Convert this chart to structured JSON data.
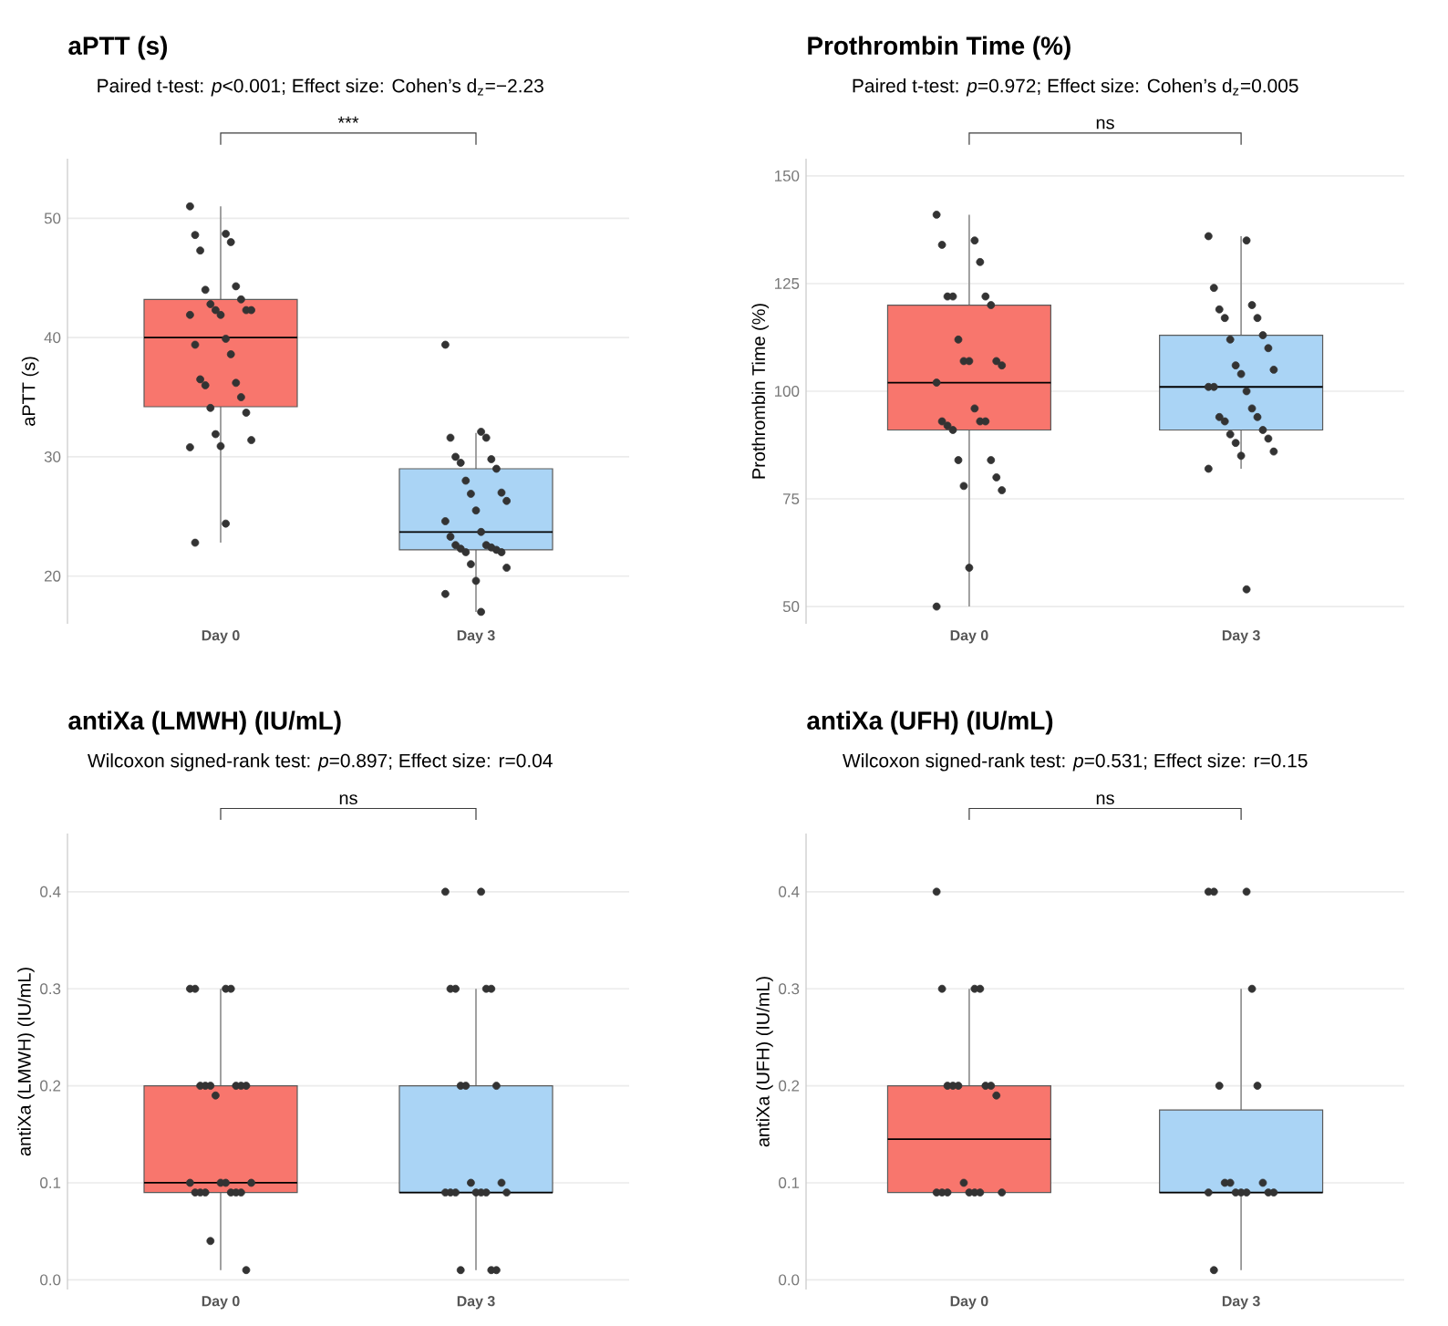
{
  "chart_data": [
    {
      "type": "box",
      "title": "aPTT (s)",
      "subtitle": "Paired t-test: *p*<0.001; Effect size: Cohen’s d$_{z}$=−2.23",
      "ylabel": "aPTT (s)",
      "categories": [
        "Day 0",
        "Day 3"
      ],
      "colors": [
        "#f8766d",
        "#aad4f5"
      ],
      "marker": "circle",
      "boxes": [
        {
          "low": 22.8,
          "q1": 34.2,
          "median": 40.0,
          "q3": 43.2,
          "high": 51.0
        },
        {
          "low": 17.0,
          "q1": 22.2,
          "median": 23.7,
          "q3": 29.0,
          "high": 32.0
        }
      ],
      "series": [
        {
          "type": "scatter",
          "color": "#333333",
          "x": [
            "Day 0",
            "Day 0",
            "Day 0",
            "Day 0",
            "Day 0",
            "Day 0",
            "Day 0",
            "Day 0",
            "Day 0",
            "Day 0",
            "Day 0",
            "Day 0",
            "Day 0",
            "Day 0",
            "Day 0",
            "Day 0",
            "Day 0",
            "Day 0",
            "Day 0",
            "Day 0",
            "Day 0",
            "Day 0",
            "Day 0",
            "Day 0",
            "Day 0",
            "Day 0",
            "Day 0",
            "Day 0",
            "Day 0"
          ],
          "values": [
            51.0,
            48.7,
            48.6,
            48.0,
            47.3,
            44.3,
            44.0,
            43.2,
            42.8,
            42.3,
            42.3,
            42.3,
            41.9,
            41.9,
            39.9,
            39.4,
            38.6,
            36.5,
            36.2,
            36.0,
            35.0,
            34.1,
            33.7,
            31.9,
            31.4,
            30.9,
            30.8,
            24.4,
            22.8
          ]
        },
        {
          "type": "scatter",
          "color": "#333333",
          "x": [
            "Day 3",
            "Day 3",
            "Day 3",
            "Day 3",
            "Day 3",
            "Day 3",
            "Day 3",
            "Day 3",
            "Day 3",
            "Day 3",
            "Day 3",
            "Day 3",
            "Day 3",
            "Day 3",
            "Day 3",
            "Day 3",
            "Day 3",
            "Day 3",
            "Day 3",
            "Day 3",
            "Day 3",
            "Day 3",
            "Day 3",
            "Day 3",
            "Day 3",
            "Day 3",
            "Day 3",
            "Day 3"
          ],
          "values": [
            39.4,
            32.1,
            31.6,
            31.6,
            30.0,
            29.8,
            29.5,
            29.0,
            28.0,
            27.0,
            26.9,
            26.3,
            25.5,
            24.6,
            23.7,
            23.3,
            22.6,
            22.6,
            22.4,
            22.3,
            22.2,
            22.0,
            22.0,
            21.0,
            20.7,
            19.6,
            18.5,
            17.0
          ]
        }
      ],
      "ylim": [
        16,
        55
      ],
      "yticks": [
        20,
        30,
        40,
        50
      ],
      "grid": "y",
      "annotations": [
        "***"
      ]
    },
    {
      "type": "box",
      "title": "Prothrombin Time (%)",
      "subtitle": "Paired t-test: *p*=0.972; Effect size: Cohen’s d$_{z}$=0.005",
      "ylabel": "Prothrombin Time (%)",
      "categories": [
        "Day 0",
        "Day 3"
      ],
      "colors": [
        "#f8766d",
        "#aad4f5"
      ],
      "marker": "circle",
      "boxes": [
        {
          "low": 50,
          "q1": 91,
          "median": 102,
          "q3": 120,
          "high": 141
        },
        {
          "low": 82,
          "q1": 91,
          "median": 101,
          "q3": 113,
          "high": 136
        }
      ],
      "series": [
        {
          "type": "scatter",
          "color": "#333333",
          "x": [
            "Day 0",
            "Day 0",
            "Day 0",
            "Day 0",
            "Day 0",
            "Day 0",
            "Day 0",
            "Day 0",
            "Day 0",
            "Day 0",
            "Day 0",
            "Day 0",
            "Day 0",
            "Day 0",
            "Day 0",
            "Day 0",
            "Day 0",
            "Day 0",
            "Day 0",
            "Day 0",
            "Day 0",
            "Day 0",
            "Day 0",
            "Day 0",
            "Day 0",
            "Day 0",
            "Day 0"
          ],
          "values": [
            141,
            135,
            134,
            130,
            122,
            122,
            122,
            120,
            112,
            107,
            107,
            106,
            107,
            102,
            96,
            93,
            93,
            92,
            93,
            91,
            84,
            84,
            80,
            78,
            77,
            59,
            50
          ]
        },
        {
          "type": "scatter",
          "color": "#333333",
          "x": [
            "Day 3",
            "Day 3",
            "Day 3",
            "Day 3",
            "Day 3",
            "Day 3",
            "Day 3",
            "Day 3",
            "Day 3",
            "Day 3",
            "Day 3",
            "Day 3",
            "Day 3",
            "Day 3",
            "Day 3",
            "Day 3",
            "Day 3",
            "Day 3",
            "Day 3",
            "Day 3",
            "Day 3",
            "Day 3",
            "Day 3",
            "Day 3",
            "Day 3",
            "Day 3",
            "Day 3",
            "Day 3"
          ],
          "values": [
            136,
            135,
            124,
            120,
            119,
            117,
            117,
            113,
            112,
            110,
            106,
            105,
            104,
            101,
            100,
            101,
            96,
            94,
            94,
            93,
            91,
            90,
            89,
            88,
            86,
            85,
            82,
            54
          ]
        }
      ],
      "ylim": [
        46,
        154
      ],
      "yticks": [
        50,
        75,
        100,
        125,
        150
      ],
      "grid": "y",
      "annotations": [
        "ns"
      ]
    },
    {
      "type": "box",
      "title": "antiXa (LMWH) (IU/mL)",
      "subtitle": "Wilcoxon signed-rank test: *p*=0.897; Effect size: r=0.04",
      "ylabel": "antiXa (LMWH) (IU/mL)",
      "categories": [
        "Day 0",
        "Day 3"
      ],
      "colors": [
        "#f8766d",
        "#aad4f5"
      ],
      "marker": "circle",
      "boxes": [
        {
          "low": 0.01,
          "q1": 0.09,
          "median": 0.1,
          "q3": 0.2,
          "high": 0.3
        },
        {
          "low": 0.01,
          "q1": 0.09,
          "median": 0.09,
          "q3": 0.2,
          "high": 0.3
        }
      ],
      "ylim": [
        -0.01,
        0.46
      ],
      "series": [
        {
          "type": "scatter",
          "color": "#333333",
          "x": [
            "Day 0",
            "Day 0",
            "Day 0",
            "Day 0",
            "Day 0",
            "Day 0",
            "Day 0",
            "Day 0",
            "Day 0",
            "Day 0",
            "Day 0",
            "Day 0",
            "Day 0",
            "Day 0",
            "Day 0",
            "Day 0",
            "Day 0",
            "Day 0",
            "Day 0",
            "Day 0",
            "Day 0",
            "Day 0",
            "Day 0"
          ],
          "values": [
            0.3,
            0.3,
            0.3,
            0.3,
            0.2,
            0.2,
            0.2,
            0.2,
            0.2,
            0.2,
            0.19,
            0.1,
            0.1,
            0.1,
            0.1,
            0.09,
            0.09,
            0.09,
            0.09,
            0.09,
            0.09,
            0.04,
            0.01
          ]
        },
        {
          "type": "scatter",
          "color": "#333333",
          "x": [
            "Day 3",
            "Day 3",
            "Day 3",
            "Day 3",
            "Day 3",
            "Day 3",
            "Day 3",
            "Day 3",
            "Day 3",
            "Day 3",
            "Day 3",
            "Day 3",
            "Day 3",
            "Day 3",
            "Day 3",
            "Day 3",
            "Day 3",
            "Day 3",
            "Day 3",
            "Day 3",
            "Day 3"
          ],
          "values": [
            0.4,
            0.4,
            0.3,
            0.3,
            0.3,
            0.3,
            0.2,
            0.2,
            0.2,
            0.1,
            0.1,
            0.09,
            0.09,
            0.09,
            0.09,
            0.09,
            0.09,
            0.09,
            0.01,
            0.01,
            0.01
          ]
        }
      ],
      "yticks": [
        {
          "value": 0,
          "label": "0.0"
        },
        0.1,
        0.2,
        0.3,
        0.4
      ],
      "grid": "y",
      "annotations": [
        "ns"
      ]
    },
    {
      "type": "box",
      "title": "antiXa (UFH) (IU/mL)",
      "subtitle": "Wilcoxon signed-rank test: *p*=0.531; Effect size: r=0.15",
      "ylabel": "antiXa (UFH) (IU/mL)",
      "categories": [
        "Day 0",
        "Day 3"
      ],
      "colors": [
        "#f8766d",
        "#aad4f5"
      ],
      "marker": "circle",
      "boxes": [
        {
          "low": 0.09,
          "q1": 0.09,
          "median": 0.145,
          "q3": 0.2,
          "high": 0.3
        },
        {
          "low": 0.01,
          "q1": 0.09,
          "median": 0.09,
          "q3": 0.175,
          "high": 0.3
        }
      ],
      "ylim": [
        -0.01,
        0.46
      ],
      "series": [
        {
          "type": "scatter",
          "color": "#333333",
          "x": [
            "Day 0",
            "Day 0",
            "Day 0",
            "Day 0",
            "Day 0",
            "Day 0",
            "Day 0",
            "Day 0",
            "Day 0",
            "Day 0",
            "Day 0",
            "Day 0",
            "Day 0",
            "Day 0",
            "Day 0",
            "Day 0",
            "Day 0",
            "Day 0"
          ],
          "values": [
            0.4,
            0.3,
            0.3,
            0.3,
            0.2,
            0.2,
            0.2,
            0.2,
            0.2,
            0.19,
            0.1,
            0.09,
            0.09,
            0.09,
            0.09,
            0.09,
            0.09,
            0.09
          ]
        },
        {
          "type": "scatter",
          "color": "#333333",
          "x": [
            "Day 3",
            "Day 3",
            "Day 3",
            "Day 3",
            "Day 3",
            "Day 3",
            "Day 3",
            "Day 3",
            "Day 3",
            "Day 3",
            "Day 3",
            "Day 3",
            "Day 3",
            "Day 3",
            "Day 3",
            "Day 3"
          ],
          "values": [
            0.4,
            0.4,
            0.4,
            0.3,
            0.2,
            0.2,
            0.1,
            0.1,
            0.1,
            0.09,
            0.09,
            0.09,
            0.09,
            0.09,
            0.09,
            0.01
          ]
        }
      ],
      "yticks": [
        {
          "value": 0,
          "label": "0.0"
        },
        0.1,
        0.2,
        0.3,
        0.4
      ],
      "grid": "y",
      "annotations": [
        "ns"
      ]
    }
  ]
}
